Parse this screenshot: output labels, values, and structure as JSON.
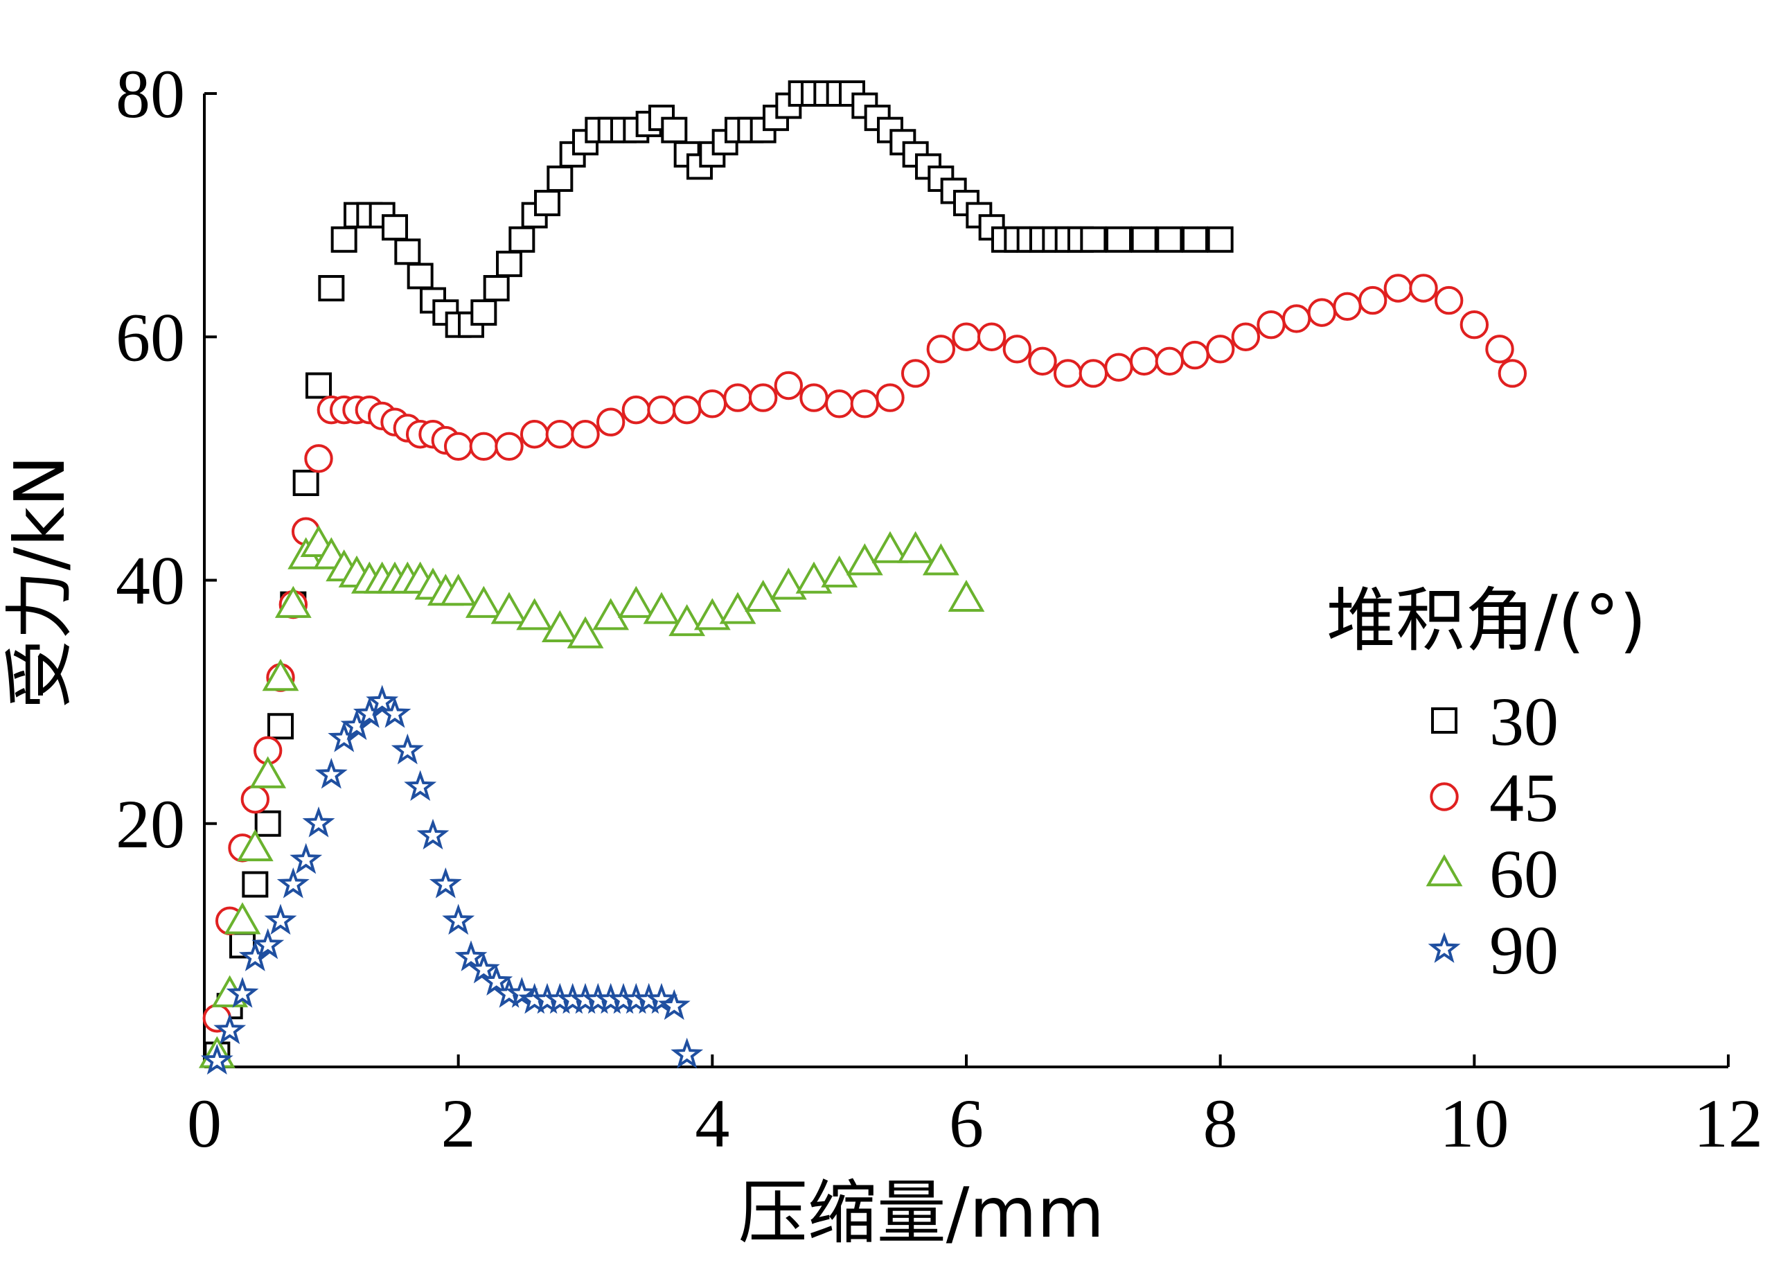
{
  "chart_data": {
    "type": "scatter",
    "title": "",
    "xlabel": "压缩量/mm",
    "ylabel": "受力/kN",
    "xlim": [
      0,
      12
    ],
    "ylim": [
      0,
      80
    ],
    "xticks": [
      0,
      2,
      4,
      6,
      8,
      10,
      12
    ],
    "yticks": [
      20,
      40,
      60,
      80
    ],
    "xtick_labels": [
      "0",
      "2",
      "4",
      "6",
      "8",
      "10",
      "12"
    ],
    "ytick_labels": [
      "20",
      "40",
      "60",
      "80"
    ],
    "grid": false,
    "legend": {
      "title": "堆积角/(°)",
      "placement": "right"
    },
    "series": [
      {
        "name": "30",
        "marker": "square",
        "color": "#000000",
        "x": [
          0.1,
          0.2,
          0.3,
          0.4,
          0.5,
          0.6,
          0.7,
          0.8,
          0.9,
          1.0,
          1.1,
          1.2,
          1.3,
          1.4,
          1.5,
          1.6,
          1.7,
          1.8,
          1.9,
          2.0,
          2.1,
          2.2,
          2.3,
          2.4,
          2.5,
          2.6,
          2.7,
          2.8,
          2.9,
          3.0,
          3.1,
          3.2,
          3.3,
          3.4,
          3.5,
          3.6,
          3.7,
          3.8,
          3.9,
          4.0,
          4.1,
          4.2,
          4.3,
          4.4,
          4.5,
          4.6,
          4.7,
          4.8,
          4.9,
          5.0,
          5.1,
          5.2,
          5.3,
          5.4,
          5.5,
          5.6,
          5.7,
          5.8,
          5.9,
          6.0,
          6.1,
          6.2,
          6.3,
          6.4,
          6.5,
          6.6,
          6.7,
          6.8,
          6.9,
          7.0,
          7.2,
          7.4,
          7.6,
          7.8,
          8.0
        ],
        "y": [
          1,
          5,
          10,
          15,
          20,
          28,
          38,
          48,
          56,
          64,
          68,
          70,
          70,
          70,
          69,
          67,
          65,
          63,
          62,
          61,
          61,
          62,
          64,
          66,
          68,
          70,
          71,
          73,
          75,
          76,
          77,
          77,
          77,
          77,
          77.5,
          78,
          77,
          75,
          74,
          75,
          76,
          77,
          77,
          77,
          78,
          79,
          80,
          80,
          80,
          80,
          80,
          79,
          78,
          77,
          76,
          75,
          74,
          73,
          72,
          71,
          70,
          69,
          68,
          68,
          68,
          68,
          68,
          68,
          68,
          68,
          68,
          68,
          68,
          68,
          68
        ]
      },
      {
        "name": "45",
        "marker": "circle",
        "color": "#e02020",
        "x": [
          0.1,
          0.2,
          0.3,
          0.4,
          0.5,
          0.6,
          0.7,
          0.8,
          0.9,
          1.0,
          1.1,
          1.2,
          1.3,
          1.4,
          1.5,
          1.6,
          1.7,
          1.8,
          1.9,
          2.0,
          2.2,
          2.4,
          2.6,
          2.8,
          3.0,
          3.2,
          3.4,
          3.6,
          3.8,
          4.0,
          4.2,
          4.4,
          4.6,
          4.8,
          5.0,
          5.2,
          5.4,
          5.6,
          5.8,
          6.0,
          6.2,
          6.4,
          6.6,
          6.8,
          7.0,
          7.2,
          7.4,
          7.6,
          7.8,
          8.0,
          8.2,
          8.4,
          8.6,
          8.8,
          9.0,
          9.2,
          9.4,
          9.6,
          9.8,
          10.0,
          10.2,
          10.3
        ],
        "y": [
          4,
          12,
          18,
          22,
          26,
          32,
          38,
          44,
          50,
          54,
          54,
          54,
          54,
          53.5,
          53,
          52.5,
          52,
          52,
          51.5,
          51,
          51,
          51,
          52,
          52,
          52,
          53,
          54,
          54,
          54,
          54.5,
          55,
          55,
          56,
          55,
          54.5,
          54.5,
          55,
          57,
          59,
          60,
          60,
          59,
          58,
          57,
          57,
          57.5,
          58,
          58,
          58.5,
          59,
          60,
          61,
          61.5,
          62,
          62.5,
          63,
          64,
          64,
          63,
          61,
          59,
          57
        ]
      },
      {
        "name": "60",
        "marker": "triangle",
        "color": "#6ab22e",
        "x": [
          0.1,
          0.2,
          0.3,
          0.4,
          0.5,
          0.6,
          0.7,
          0.8,
          0.9,
          1.0,
          1.1,
          1.2,
          1.3,
          1.4,
          1.5,
          1.6,
          1.7,
          1.8,
          1.9,
          2.0,
          2.2,
          2.4,
          2.6,
          2.8,
          3.0,
          3.2,
          3.4,
          3.6,
          3.8,
          4.0,
          4.2,
          4.4,
          4.6,
          4.8,
          5.0,
          5.2,
          5.4,
          5.6,
          5.8,
          6.0
        ],
        "y": [
          1,
          6,
          12,
          18,
          24,
          32,
          38,
          42,
          43,
          42,
          41,
          40.5,
          40,
          40,
          40,
          40,
          40,
          39.5,
          39,
          39,
          38,
          37.5,
          37,
          36,
          35.5,
          37,
          38,
          37.5,
          36.5,
          37,
          37.5,
          38.5,
          39.5,
          40,
          40.5,
          41.5,
          42.5,
          42.5,
          41.5,
          38.5
        ]
      },
      {
        "name": "90",
        "marker": "star",
        "color": "#1f4fa0",
        "x": [
          0.1,
          0.2,
          0.3,
          0.4,
          0.5,
          0.6,
          0.7,
          0.8,
          0.9,
          1.0,
          1.1,
          1.2,
          1.3,
          1.4,
          1.5,
          1.6,
          1.7,
          1.8,
          1.9,
          2.0,
          2.1,
          2.2,
          2.3,
          2.4,
          2.5,
          2.6,
          2.7,
          2.8,
          2.9,
          3.0,
          3.1,
          3.2,
          3.3,
          3.4,
          3.5,
          3.6,
          3.7,
          3.8
        ],
        "y": [
          0.5,
          3,
          6,
          9,
          10,
          12,
          15,
          17,
          20,
          24,
          27,
          28,
          29,
          30,
          29,
          26,
          23,
          19,
          15,
          12,
          9,
          8,
          7,
          6,
          6,
          5.5,
          5.5,
          5.5,
          5.5,
          5.5,
          5.5,
          5.5,
          5.5,
          5.5,
          5.5,
          5.5,
          5,
          1
        ]
      }
    ]
  }
}
